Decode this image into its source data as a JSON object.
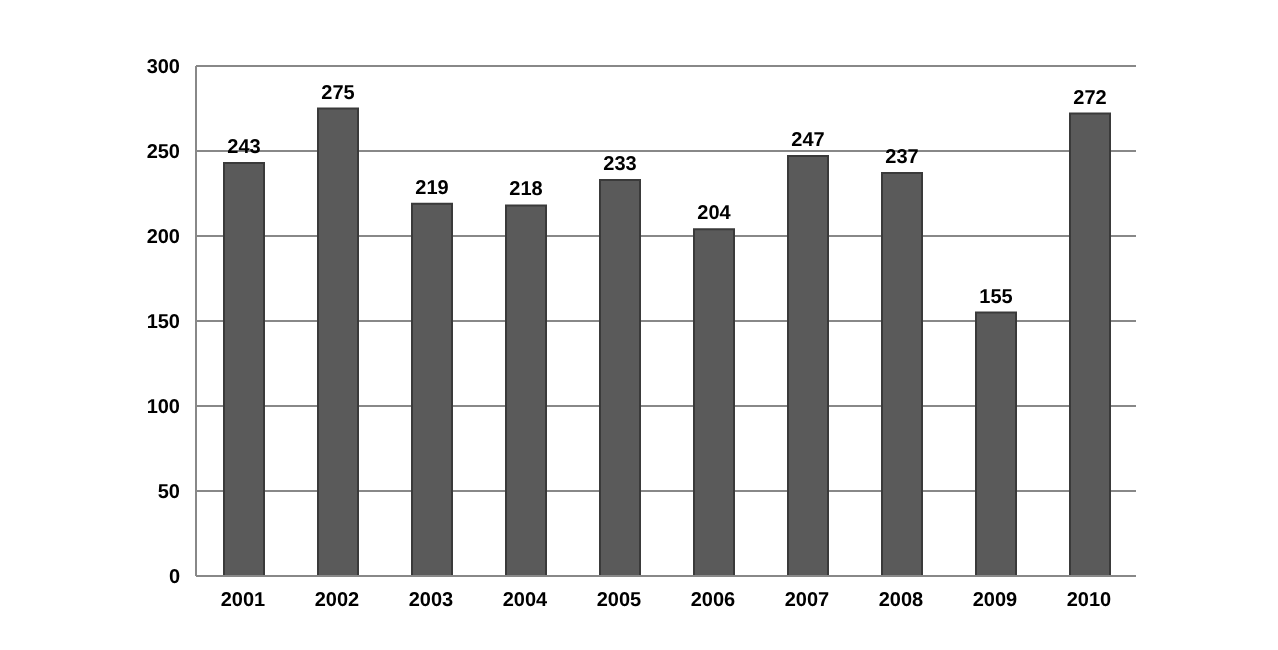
{
  "chart_data": {
    "type": "bar",
    "categories": [
      "2001",
      "2002",
      "2003",
      "2004",
      "2005",
      "2006",
      "2007",
      "2008",
      "2009",
      "2010"
    ],
    "values": [
      243,
      275,
      219,
      218,
      233,
      204,
      247,
      237,
      155,
      272
    ],
    "color": "#5a5a5a",
    "ylim": [
      0,
      300
    ],
    "yticks": [
      0,
      50,
      100,
      150,
      200,
      250,
      300
    ],
    "grid": "y",
    "data_labels": true
  }
}
